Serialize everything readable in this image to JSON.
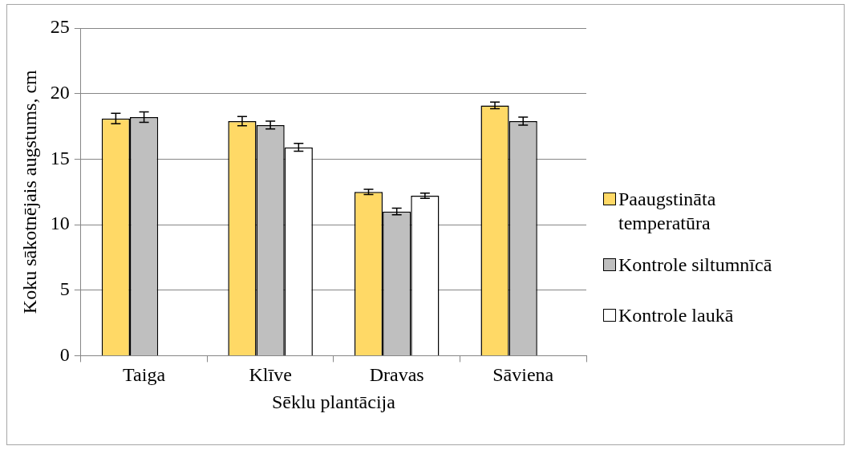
{
  "chart_data": {
    "type": "bar",
    "xlabel": "Sēklu plantācija",
    "ylabel": "Koku sākotnējais augstums, cm",
    "categories": [
      "Taiga",
      "Klīve",
      "Dravas",
      "Sāviena"
    ],
    "series": [
      {
        "name": "Paaugstināta temperatūra",
        "color": "#ffd966",
        "values": [
          18.1,
          17.9,
          12.5,
          19.1
        ],
        "errors": [
          0.4,
          0.35,
          0.2,
          0.25
        ]
      },
      {
        "name": "Kontrole siltumnīcā",
        "color": "#bfbfbf",
        "values": [
          18.2,
          17.6,
          11.0,
          17.9
        ],
        "errors": [
          0.4,
          0.3,
          0.25,
          0.3
        ]
      },
      {
        "name": "Kontrole laukā",
        "color": "#ffffff",
        "values": [
          null,
          15.9,
          12.2,
          null
        ],
        "errors": [
          null,
          0.3,
          0.2,
          null
        ]
      }
    ],
    "ylim": [
      0,
      25
    ],
    "yticks": [
      0,
      5,
      10,
      15,
      20,
      25
    ],
    "grid": "y",
    "legend": "right"
  }
}
